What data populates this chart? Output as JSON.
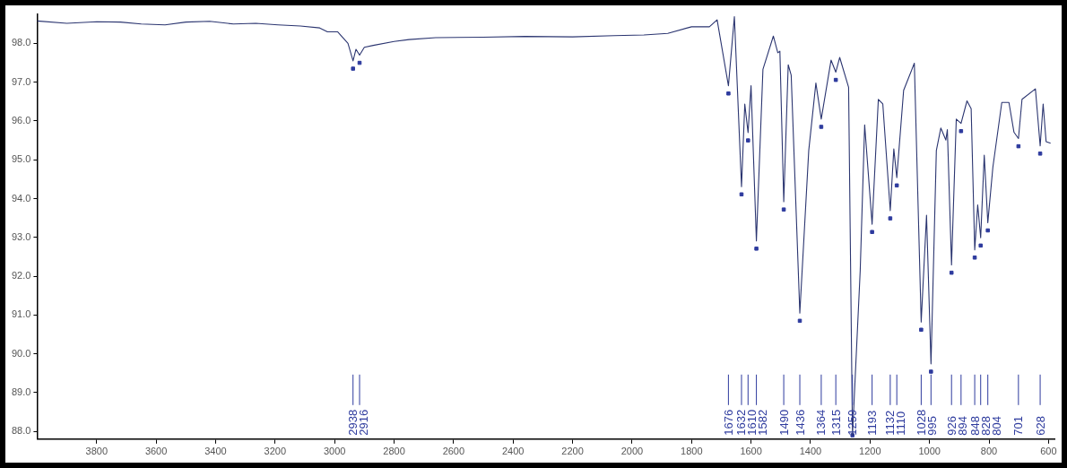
{
  "chart_data": {
    "type": "line",
    "xlim": [
      4000,
      580
    ],
    "ylim": [
      87.8,
      98.75
    ],
    "xticks": [
      3800,
      3600,
      3400,
      3200,
      3000,
      2800,
      2600,
      2400,
      2200,
      2000,
      1800,
      1600,
      1400,
      1200,
      1000,
      800,
      600
    ],
    "yticks": [
      {
        "value": 88,
        "label": "88.0"
      },
      {
        "value": 89,
        "label": "89.0"
      },
      {
        "value": 90,
        "label": "90.0"
      },
      {
        "value": 91,
        "label": "91.0"
      },
      {
        "value": 92,
        "label": "92.0"
      },
      {
        "value": 93,
        "label": "93.0"
      },
      {
        "value": 94,
        "label": "94.0"
      },
      {
        "value": 95,
        "label": "95.0"
      },
      {
        "value": 96,
        "label": "96.0"
      },
      {
        "value": 97,
        "label": "97.0"
      },
      {
        "value": 98,
        "label": "98.0"
      }
    ],
    "marker": "none",
    "series": [
      {
        "color": "#2b3570",
        "x": [
          4000,
          3900,
          3800,
          3720,
          3650,
          3570,
          3500,
          3420,
          3340,
          3265,
          3190,
          3115,
          3050,
          3024,
          2990,
          2955,
          2938,
          2928,
          2916,
          2900,
          2870,
          2800,
          2750,
          2660,
          2500,
          2360,
          2200,
          2060,
          1960,
          1880,
          1800,
          1740,
          1714,
          1676,
          1656,
          1632,
          1621,
          1610,
          1600,
          1582,
          1560,
          1525,
          1510,
          1503,
          1490,
          1475,
          1465,
          1436,
          1406,
          1382,
          1364,
          1331,
          1315,
          1302,
          1272,
          1259,
          1233,
          1218,
          1193,
          1172,
          1157,
          1132,
          1120,
          1110,
          1087,
          1051,
          1028,
          1010,
          995,
          977,
          962,
          945,
          940,
          926,
          910,
          894,
          874,
          860,
          848,
          838,
          828,
          816,
          804,
          787,
          757,
          733,
          716,
          701,
          689,
          644,
          628,
          618,
          608,
          593
        ],
        "values": [
          98.58,
          98.52,
          98.56,
          98.55,
          98.5,
          98.48,
          98.55,
          98.57,
          98.5,
          98.52,
          98.48,
          98.45,
          98.4,
          98.3,
          98.3,
          98.0,
          97.55,
          97.85,
          97.7,
          97.9,
          97.95,
          98.05,
          98.1,
          98.15,
          98.16,
          98.18,
          98.17,
          98.2,
          98.22,
          98.26,
          98.43,
          98.43,
          98.61,
          96.91,
          98.69,
          94.31,
          96.44,
          95.7,
          96.91,
          92.91,
          97.33,
          98.19,
          97.76,
          97.8,
          93.92,
          97.45,
          97.18,
          91.05,
          95.24,
          96.98,
          96.05,
          97.57,
          97.26,
          97.64,
          96.87,
          87.9,
          92.14,
          95.9,
          93.34,
          96.56,
          96.44,
          93.69,
          95.28,
          94.54,
          96.79,
          97.49,
          90.82,
          93.57,
          89.74,
          95.24,
          95.82,
          95.51,
          95.78,
          92.29,
          96.05,
          95.94,
          96.52,
          96.32,
          92.68,
          93.84,
          92.99,
          95.12,
          93.38,
          94.81,
          96.48,
          96.48,
          95.71,
          95.55,
          96.56,
          96.83,
          95.36,
          96.44,
          95.47,
          95.43
        ]
      },
      {
        "type": "scatter",
        "color": "#2e3b9e",
        "marker": "square",
        "x": [
          2938,
          2916,
          1676,
          1632,
          1610,
          1582,
          1490,
          1436,
          1364,
          1315,
          1259,
          1193,
          1132,
          1110,
          1028,
          995,
          926,
          894,
          848,
          828,
          804,
          701,
          628
        ],
        "values": [
          97.35,
          97.5,
          96.71,
          94.11,
          95.5,
          92.71,
          93.72,
          90.85,
          95.85,
          97.06,
          87.9,
          93.14,
          93.49,
          94.34,
          90.62,
          89.54,
          92.09,
          95.74,
          92.48,
          92.79,
          93.18,
          95.35,
          95.16
        ]
      }
    ],
    "ref_lines": [
      {
        "axis": "x",
        "value": 2938,
        "label": "2938"
      },
      {
        "axis": "x",
        "value": 2916,
        "label": "2916"
      },
      {
        "axis": "x",
        "value": 1676,
        "label": "1676"
      },
      {
        "axis": "x",
        "value": 1632,
        "label": "1632"
      },
      {
        "axis": "x",
        "value": 1610,
        "label": "1610"
      },
      {
        "axis": "x",
        "value": 1582,
        "label": "1582"
      },
      {
        "axis": "x",
        "value": 1490,
        "label": "1490"
      },
      {
        "axis": "x",
        "value": 1436,
        "label": "1436"
      },
      {
        "axis": "x",
        "value": 1364,
        "label": "1364"
      },
      {
        "axis": "x",
        "value": 1315,
        "label": "1315"
      },
      {
        "axis": "x",
        "value": 1259,
        "label": "1259"
      },
      {
        "axis": "x",
        "value": 1193,
        "label": "1193"
      },
      {
        "axis": "x",
        "value": 1132,
        "label": "1132"
      },
      {
        "axis": "x",
        "value": 1110,
        "label": "1110"
      },
      {
        "axis": "x",
        "value": 1028,
        "label": "1028"
      },
      {
        "axis": "x",
        "value": 995,
        "label": "995"
      },
      {
        "axis": "x",
        "value": 926,
        "label": "926"
      },
      {
        "axis": "x",
        "value": 894,
        "label": "894"
      },
      {
        "axis": "x",
        "value": 848,
        "label": "848"
      },
      {
        "axis": "x",
        "value": 828,
        "label": "828"
      },
      {
        "axis": "x",
        "value": 804,
        "label": "804"
      },
      {
        "axis": "x",
        "value": 701,
        "label": "701"
      },
      {
        "axis": "x",
        "value": 628,
        "label": "628"
      }
    ]
  }
}
